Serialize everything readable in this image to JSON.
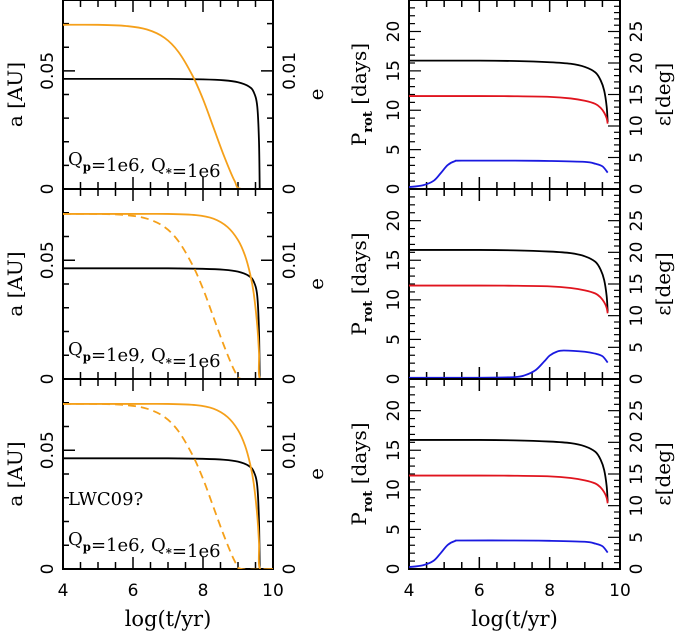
{
  "chart_data": {
    "type": "line",
    "shared_x": {
      "label": "log(t/yr)",
      "range": [
        4,
        10
      ],
      "ticks": [
        "4",
        "6",
        "8",
        "10"
      ]
    },
    "colors": {
      "a": "#000000",
      "e": "#f5a01a",
      "P_rot": "#000000",
      "P_red": "#e0141e",
      "eps": "#1a1ae0"
    },
    "left_panels": [
      {
        "annotation": [
          "Q_p=1e6, Q_*=1e6"
        ],
        "ylabel_left": "a [AU]",
        "ylabel_right": "e",
        "left_range": [
          0,
          0.08
        ],
        "left_ticks": [
          "0",
          "0.05"
        ],
        "right_range": [
          0,
          0.016
        ],
        "right_ticks": [
          "0",
          "0.01"
        ],
        "series": [
          {
            "name": "a",
            "style": "solid",
            "color_key": "a",
            "x": [
              4,
              6,
              7,
              8,
              8.6,
              9.0,
              9.3,
              9.45,
              9.55,
              9.6,
              9.62
            ],
            "y": [
              0.0466,
              0.0466,
              0.0466,
              0.0464,
              0.046,
              0.0452,
              0.0435,
              0.041,
              0.035,
              0.02,
              0.0
            ]
          },
          {
            "name": "e",
            "style": "solid",
            "color_key": "e",
            "x": [
              4,
              5,
              5.8,
              6.4,
              6.9,
              7.3,
              7.7,
              8.0,
              8.3,
              8.6,
              8.9,
              9.1,
              10
            ],
            "y": [
              0.0139,
              0.0139,
              0.0138,
              0.0135,
              0.0128,
              0.0116,
              0.0096,
              0.0076,
              0.0052,
              0.0028,
              0.0007,
              0.0,
              0.0
            ]
          }
        ]
      },
      {
        "annotation": [
          "Q_p=1e9, Q_*=1e6"
        ],
        "ylabel_left": "a [AU]",
        "ylabel_right": "e",
        "left_range": [
          0,
          0.08
        ],
        "left_ticks": [
          "0",
          "0.05"
        ],
        "right_range": [
          0,
          0.016
        ],
        "right_ticks": [
          "0",
          "0.01"
        ],
        "series": [
          {
            "name": "a",
            "style": "solid",
            "color_key": "a",
            "x": [
              4,
              6,
              7,
              8,
              8.6,
              9.0,
              9.3,
              9.45,
              9.55,
              9.6,
              9.62
            ],
            "y": [
              0.0466,
              0.0466,
              0.0466,
              0.0464,
              0.046,
              0.0452,
              0.0435,
              0.041,
              0.035,
              0.02,
              0.0
            ]
          },
          {
            "name": "e (Q_p=1e9)",
            "style": "solid",
            "color_key": "e",
            "x": [
              4,
              6,
              7,
              7.8,
              8.3,
              8.7,
              9.0,
              9.2,
              9.35,
              9.45,
              9.55,
              9.6,
              9.63,
              10
            ],
            "y": [
              0.0139,
              0.0139,
              0.0139,
              0.0138,
              0.0135,
              0.0128,
              0.0117,
              0.0104,
              0.0088,
              0.0072,
              0.0045,
              0.0022,
              0.0,
              0.0
            ]
          },
          {
            "name": "e (reference)",
            "style": "dashed",
            "color_key": "e",
            "x": [
              4,
              5,
              5.8,
              6.4,
              6.9,
              7.3,
              7.7,
              8.0,
              8.3,
              8.6,
              8.9,
              9.1,
              10
            ],
            "y": [
              0.0139,
              0.0139,
              0.0138,
              0.0135,
              0.0128,
              0.0116,
              0.0096,
              0.0076,
              0.0052,
              0.0028,
              0.0007,
              0.0,
              0.0
            ]
          }
        ]
      },
      {
        "annotation": [
          "LWC09?",
          "Q_p=1e6, Q_*=1e6"
        ],
        "ylabel_left": "a [AU]",
        "ylabel_right": "e",
        "left_range": [
          0,
          0.08
        ],
        "left_ticks": [
          "0",
          "0.05"
        ],
        "right_range": [
          0,
          0.016
        ],
        "right_ticks": [
          "0",
          "0.01"
        ],
        "series": [
          {
            "name": "a",
            "style": "solid",
            "color_key": "a",
            "x": [
              4,
              6,
              7,
              8,
              8.6,
              9.0,
              9.3,
              9.45,
              9.55,
              9.6,
              9.62
            ],
            "y": [
              0.0466,
              0.0466,
              0.0466,
              0.0464,
              0.046,
              0.0452,
              0.0435,
              0.041,
              0.035,
              0.02,
              0.0
            ]
          },
          {
            "name": "e",
            "style": "solid",
            "color_key": "e",
            "x": [
              4,
              6,
              7,
              7.8,
              8.3,
              8.7,
              9.0,
              9.2,
              9.35,
              9.45,
              9.55,
              9.6,
              9.63,
              10
            ],
            "y": [
              0.0139,
              0.0139,
              0.0139,
              0.0138,
              0.0135,
              0.0128,
              0.0117,
              0.0104,
              0.0088,
              0.0072,
              0.0045,
              0.0022,
              0.0,
              0.0
            ]
          },
          {
            "name": "e (reference)",
            "style": "dashed",
            "color_key": "e",
            "x": [
              4,
              5,
              5.8,
              6.4,
              6.9,
              7.3,
              7.7,
              8.0,
              8.3,
              8.6,
              8.9,
              9.1,
              10
            ],
            "y": [
              0.0139,
              0.0139,
              0.0138,
              0.0135,
              0.0128,
              0.0116,
              0.0096,
              0.0076,
              0.0052,
              0.0028,
              0.0007,
              0.0,
              0.0
            ]
          }
        ]
      }
    ],
    "right_panels": [
      {
        "ylabel_left": "P_rot [days]",
        "ylabel_right": "ε[deg]",
        "left_range": [
          0,
          24
        ],
        "left_ticks": [
          "0",
          "5",
          "10",
          "15",
          "20"
        ],
        "right_range": [
          0,
          30
        ],
        "right_ticks": [
          "0",
          "5",
          "10",
          "15",
          "20",
          "25"
        ],
        "series": [
          {
            "name": "P_rot black",
            "axis": "left",
            "color_key": "P_rot",
            "x": [
              4,
              6,
              7,
              8,
              8.6,
              9.0,
              9.3,
              9.45,
              9.55,
              9.62,
              9.65
            ],
            "y": [
              16.3,
              16.3,
              16.25,
              16.1,
              15.9,
              15.5,
              14.8,
              13.8,
              12.5,
              10.5,
              8.5
            ]
          },
          {
            "name": "P_rot red",
            "axis": "left",
            "color_key": "P_red",
            "x": [
              4,
              6,
              7,
              8,
              8.6,
              9.0,
              9.3,
              9.45,
              9.55,
              9.62,
              9.65
            ],
            "y": [
              11.8,
              11.8,
              11.78,
              11.7,
              11.5,
              11.2,
              10.8,
              10.3,
              9.7,
              9.0,
              8.3
            ]
          },
          {
            "name": "ε",
            "axis": "right",
            "color_key": "eps",
            "x": [
              4,
              4.4,
              4.7,
              4.9,
              5.1,
              5.3,
              5.5,
              7,
              8,
              9.0,
              9.3,
              9.5,
              9.65
            ],
            "y": [
              0.3,
              0.6,
              1.3,
              2.5,
              3.8,
              4.4,
              4.5,
              4.5,
              4.45,
              4.3,
              4.0,
              3.6,
              2.6
            ]
          }
        ]
      },
      {
        "ylabel_left": "P_rot [days]",
        "ylabel_right": "ε[deg]",
        "left_range": [
          0,
          24
        ],
        "left_ticks": [
          "0",
          "5",
          "10",
          "15",
          "20"
        ],
        "right_range": [
          0,
          30
        ],
        "right_ticks": [
          "0",
          "5",
          "10",
          "15",
          "20",
          "25"
        ],
        "series": [
          {
            "name": "P_rot black",
            "axis": "left",
            "color_key": "P_rot",
            "x": [
              4,
              6,
              7,
              8,
              8.6,
              9.0,
              9.3,
              9.45,
              9.55,
              9.62,
              9.65
            ],
            "y": [
              16.3,
              16.3,
              16.25,
              16.1,
              15.9,
              15.5,
              14.8,
              13.8,
              12.5,
              10.5,
              8.5
            ]
          },
          {
            "name": "P_rot red",
            "axis": "left",
            "color_key": "P_red",
            "x": [
              4,
              6,
              7,
              8,
              8.6,
              9.0,
              9.3,
              9.45,
              9.55,
              9.62,
              9.65
            ],
            "y": [
              11.8,
              11.8,
              11.78,
              11.7,
              11.5,
              11.2,
              10.8,
              10.3,
              9.7,
              9.0,
              8.3
            ]
          },
          {
            "name": "ε",
            "axis": "right",
            "color_key": "eps",
            "x": [
              4,
              6,
              7,
              7.3,
              7.6,
              7.85,
              8.0,
              8.2,
              8.4,
              9.0,
              9.3,
              9.5,
              9.65
            ],
            "y": [
              0.2,
              0.2,
              0.3,
              0.6,
              1.4,
              2.8,
              3.7,
              4.3,
              4.5,
              4.3,
              4.0,
              3.6,
              2.6
            ]
          }
        ]
      },
      {
        "ylabel_left": "P_rot [days]",
        "ylabel_right": "ε[deg]",
        "left_range": [
          0,
          24
        ],
        "left_ticks": [
          "0",
          "5",
          "10",
          "15",
          "20"
        ],
        "right_range": [
          0,
          30
        ],
        "right_ticks": [
          "0",
          "5",
          "10",
          "15",
          "20",
          "25"
        ],
        "series": [
          {
            "name": "P_rot black",
            "axis": "left",
            "color_key": "P_rot",
            "x": [
              4,
              6,
              7,
              8,
              8.6,
              9.0,
              9.3,
              9.45,
              9.55,
              9.62,
              9.65
            ],
            "y": [
              16.3,
              16.3,
              16.25,
              16.1,
              15.9,
              15.5,
              14.8,
              13.8,
              12.5,
              10.5,
              8.5
            ]
          },
          {
            "name": "P_rot red",
            "axis": "left",
            "color_key": "P_red",
            "x": [
              4,
              6,
              7,
              8,
              8.6,
              9.0,
              9.3,
              9.45,
              9.55,
              9.62,
              9.65
            ],
            "y": [
              11.8,
              11.8,
              11.78,
              11.7,
              11.5,
              11.2,
              10.8,
              10.3,
              9.7,
              9.0,
              8.3
            ]
          },
          {
            "name": "ε",
            "axis": "right",
            "color_key": "eps",
            "x": [
              4,
              4.4,
              4.7,
              4.9,
              5.1,
              5.3,
              5.5,
              7,
              8,
              9.0,
              9.3,
              9.5,
              9.65
            ],
            "y": [
              0.3,
              0.6,
              1.3,
              2.5,
              3.8,
              4.4,
              4.5,
              4.5,
              4.45,
              4.3,
              4.0,
              3.6,
              2.6
            ]
          }
        ]
      }
    ]
  }
}
